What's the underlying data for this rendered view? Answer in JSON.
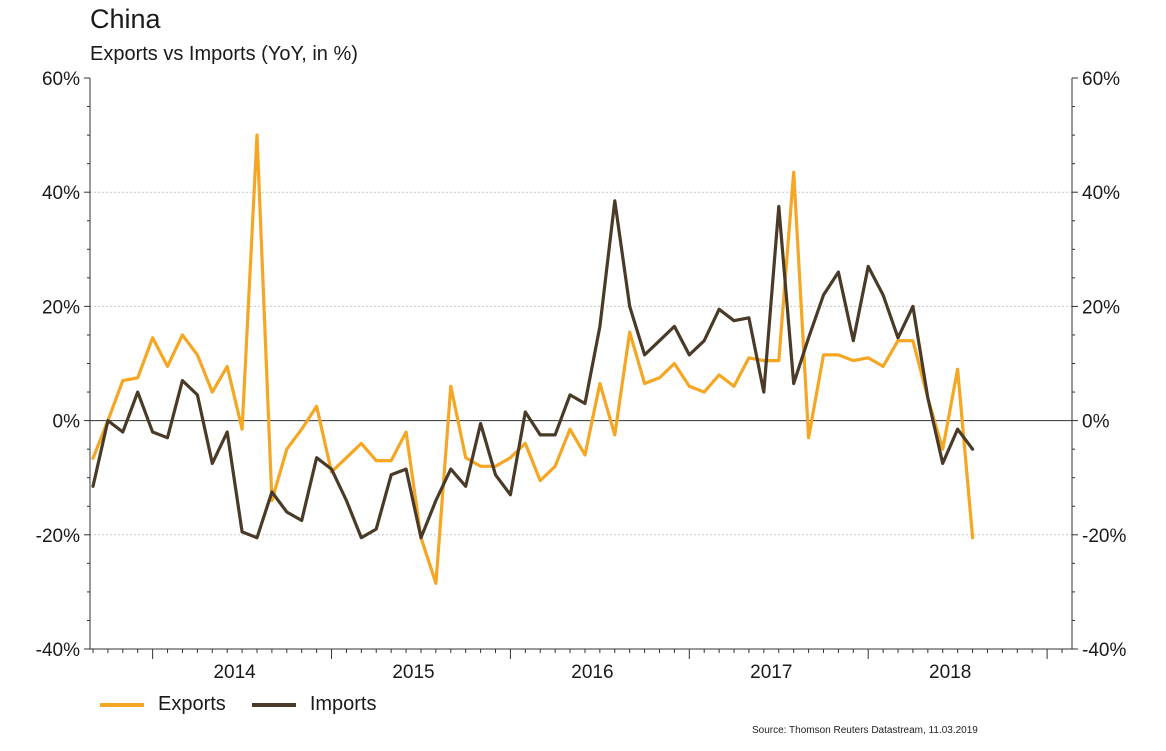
{
  "title": "China",
  "subtitle": "Exports vs Imports (YoY, in %)",
  "source": "Source: Thomson Reuters Datastream, 11.03.2019",
  "legend": [
    {
      "label": "Exports",
      "color": "#f5a623"
    },
    {
      "label": "Imports",
      "color": "#4a3b28"
    }
  ],
  "chart_data": {
    "type": "line",
    "x_start": "2013-09",
    "x_end": "2019-02",
    "x_tick_labels": [
      "2014",
      "2015",
      "2016",
      "2017",
      "2018"
    ],
    "y_tick_labels": [
      "60%",
      "40%",
      "20%",
      "0%",
      "-20%",
      "-40%"
    ],
    "ylim": [
      -40,
      60
    ],
    "grid": "horizontal dotted at 20% steps",
    "legend_position": "bottom-left",
    "series": [
      {
        "name": "Exports",
        "color": "#f5a623",
        "values": [
          -6.6,
          0.0,
          7.0,
          7.5,
          14.5,
          9.5,
          15.0,
          11.5,
          5.0,
          9.5,
          -1.5,
          50.0,
          -14.0,
          -5.0,
          -1.5,
          2.5,
          -9.0,
          -6.5,
          -4.0,
          -7.0,
          -7.0,
          -2.0,
          -20.5,
          -28.5,
          6.0,
          -6.5,
          -8.0,
          -8.0,
          -6.5,
          -4.0,
          -10.5,
          -8.0,
          -1.5,
          -6.0,
          6.5,
          -2.5,
          15.5,
          6.5,
          7.5,
          10.0,
          6.0,
          5.0,
          8.0,
          6.0,
          11.0,
          10.5,
          10.5,
          43.5,
          -3.0,
          11.5,
          11.5,
          10.5,
          11.0,
          9.5,
          14.0,
          14.0,
          4.0,
          -5.0,
          9.0,
          -20.5
        ]
      },
      {
        "name": "Imports",
        "color": "#4a3b28",
        "values": [
          -11.5,
          0.0,
          -2.0,
          5.0,
          -2.0,
          -3.0,
          7.0,
          4.5,
          -7.5,
          -2.0,
          -19.5,
          -20.5,
          -12.5,
          -16.0,
          -17.5,
          -6.5,
          -8.5,
          -14.0,
          -20.5,
          -19.0,
          -9.5,
          -8.5,
          -20.5,
          -14.0,
          -8.5,
          -11.5,
          -0.5,
          -9.5,
          -13.0,
          1.5,
          -2.5,
          -2.5,
          4.5,
          3.0,
          16.5,
          38.5,
          20.0,
          11.5,
          14.0,
          16.5,
          11.5,
          14.0,
          19.5,
          17.5,
          18.0,
          5.0,
          37.5,
          6.5,
          14.5,
          22.0,
          26.0,
          14.0,
          27.0,
          22.0,
          14.5,
          20.0,
          4.0,
          -7.5,
          -1.5,
          -5.0
        ]
      }
    ]
  }
}
